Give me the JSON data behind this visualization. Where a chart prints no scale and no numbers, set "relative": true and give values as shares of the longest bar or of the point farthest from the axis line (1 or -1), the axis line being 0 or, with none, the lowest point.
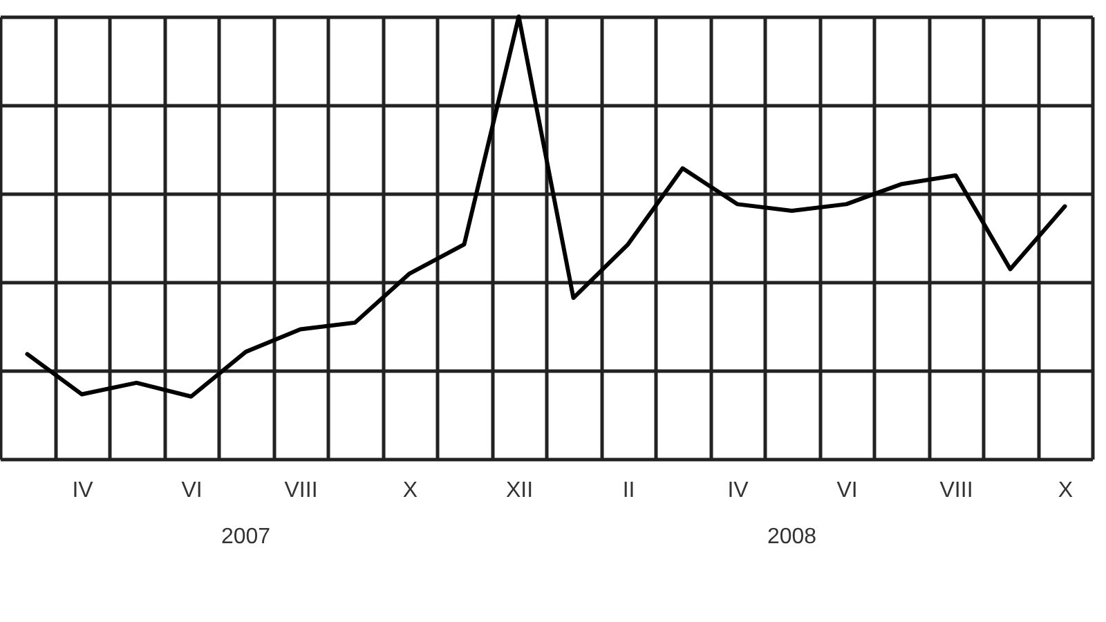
{
  "chart_data": {
    "type": "line",
    "relative": true,
    "grid": true,
    "categories": [
      null,
      "IV",
      null,
      "VI",
      null,
      "VIII",
      null,
      "X",
      null,
      "XII",
      null,
      "II",
      null,
      "IV",
      null,
      "VI",
      null,
      "VIII",
      null,
      "X"
    ],
    "series": [
      {
        "color": "#000000",
        "values": [
          0.237,
          0.146,
          0.172,
          0.141,
          0.242,
          0.293,
          0.308,
          0.419,
          0.485,
          1,
          0.364,
          0.485,
          0.657,
          0.576,
          0.561,
          0.576,
          0.621,
          0.641,
          0.429,
          0.571
        ]
      }
    ],
    "annotations": [
      "2007",
      "2008"
    ]
  }
}
